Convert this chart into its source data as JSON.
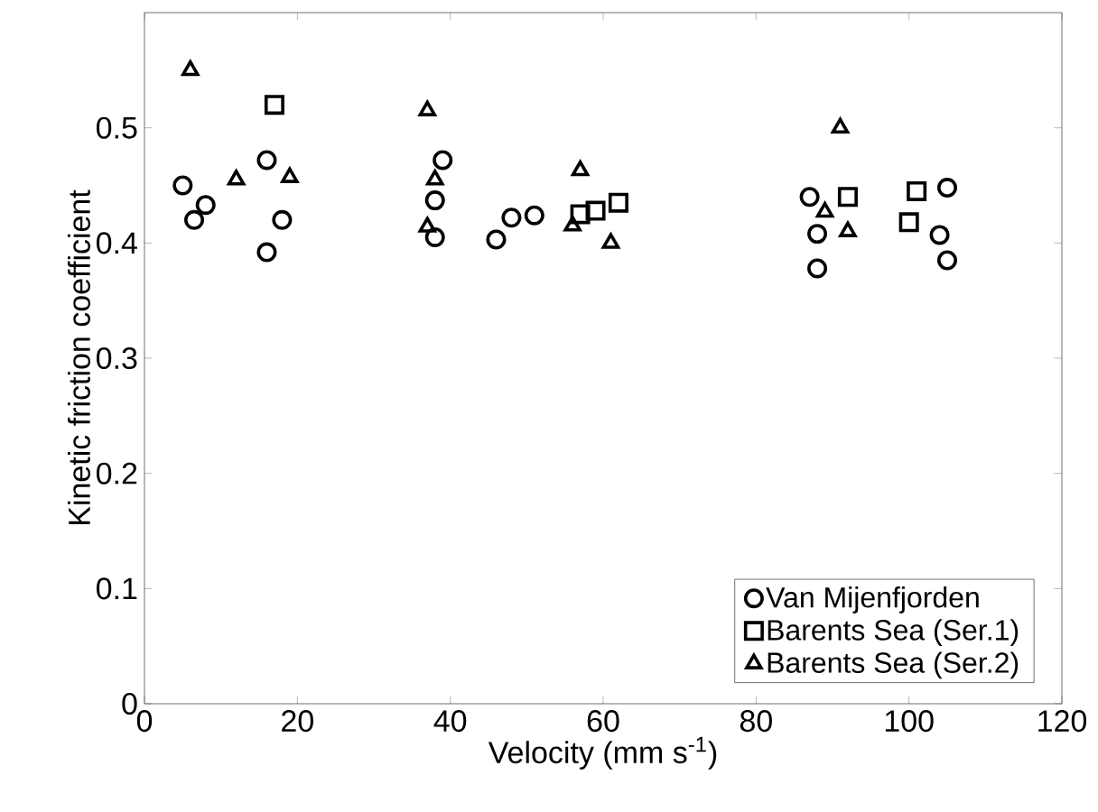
{
  "chart_data": {
    "type": "scatter",
    "xlabel": "Velocity (mm s$^{-1}$)",
    "ylabel": "Kinetic friction coefficient",
    "xlim": [
      0,
      120
    ],
    "ylim": [
      0,
      0.6
    ],
    "xticks": [
      0,
      20,
      40,
      60,
      80,
      100,
      120
    ],
    "yticks": [
      0,
      0.1,
      0.2,
      0.3,
      0.4,
      0.5
    ],
    "grid": false,
    "legend": "bottom right",
    "series": [
      {
        "name": "Van Mijenfjorden",
        "color": "#000000",
        "marker": "circle",
        "x": [
          5,
          6.5,
          8,
          16,
          16,
          18,
          39,
          38,
          38,
          46,
          48,
          51,
          87,
          88,
          88,
          105,
          104,
          105
        ],
        "values": [
          0.45,
          0.42,
          0.433,
          0.472,
          0.392,
          0.42,
          0.472,
          0.437,
          0.405,
          0.403,
          0.422,
          0.424,
          0.44,
          0.408,
          0.378,
          0.448,
          0.407,
          0.385
        ]
      },
      {
        "name": "Barents Sea (Ser.1)",
        "color": "#000000",
        "marker": "square",
        "x": [
          17,
          57,
          59,
          62,
          92,
          101,
          100
        ],
        "values": [
          0.52,
          0.425,
          0.428,
          0.435,
          0.44,
          0.445,
          0.418
        ]
      },
      {
        "name": "Barents Sea (Ser.2)",
        "color": "#000000",
        "marker": "triangle",
        "x": [
          6,
          12,
          19,
          37,
          38,
          37,
          57,
          56,
          61,
          91,
          89,
          92
        ],
        "values": [
          0.55,
          0.455,
          0.457,
          0.515,
          0.455,
          0.414,
          0.463,
          0.415,
          0.4,
          0.5,
          0.427,
          0.41
        ]
      }
    ]
  }
}
